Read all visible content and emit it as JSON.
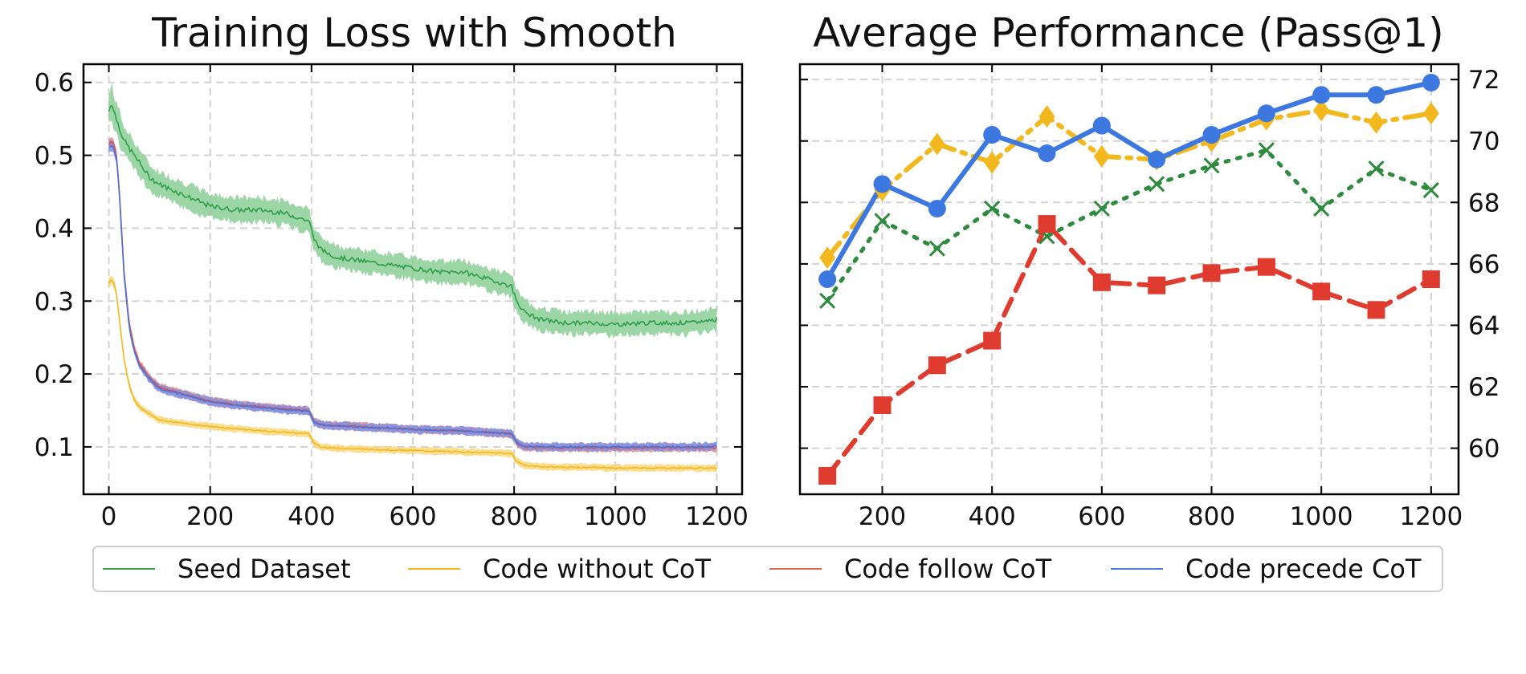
{
  "chart_data": [
    {
      "type": "line",
      "title": "Training Loss with Smooth",
      "xlabel": "",
      "ylabel": "",
      "xlim": [
        -50,
        1250
      ],
      "ylim": [
        0.035,
        0.625
      ],
      "xticks": [
        0,
        200,
        400,
        600,
        800,
        1000,
        1200
      ],
      "yticks": [
        0.1,
        0.2,
        0.3,
        0.4,
        0.5,
        0.6
      ],
      "xtick_labels": [
        "0",
        "200",
        "400",
        "600",
        "800",
        "1000",
        "1200"
      ],
      "ytick_labels": [
        "0.1",
        "0.2",
        "0.3",
        "0.4",
        "0.5",
        "0.6"
      ],
      "grid": true,
      "shaded_band": "smoothed curve with min/max band",
      "series": [
        {
          "name": "Seed Dataset",
          "color": "#2e9e4a",
          "band_color": "#8ccf97",
          "x": [
            0,
            5,
            10,
            20,
            30,
            40,
            60,
            80,
            100,
            150,
            200,
            250,
            300,
            350,
            395,
            405,
            420,
            450,
            500,
            550,
            600,
            650,
            700,
            750,
            795,
            805,
            820,
            850,
            900,
            950,
            1000,
            1050,
            1100,
            1150,
            1200
          ],
          "y": [
            0.56,
            0.575,
            0.56,
            0.54,
            0.52,
            0.51,
            0.49,
            0.47,
            0.46,
            0.445,
            0.43,
            0.425,
            0.425,
            0.42,
            0.41,
            0.385,
            0.37,
            0.36,
            0.355,
            0.35,
            0.345,
            0.34,
            0.34,
            0.33,
            0.32,
            0.3,
            0.285,
            0.275,
            0.27,
            0.27,
            0.268,
            0.27,
            0.27,
            0.27,
            0.275
          ],
          "spread": [
            0.025,
            0.03,
            0.03,
            0.028,
            0.025,
            0.025,
            0.025,
            0.022,
            0.022,
            0.022,
            0.022,
            0.022,
            0.022,
            0.022,
            0.022,
            0.022,
            0.02,
            0.02,
            0.02,
            0.02,
            0.02,
            0.02,
            0.02,
            0.02,
            0.02,
            0.02,
            0.02,
            0.02,
            0.02,
            0.02,
            0.02,
            0.02,
            0.02,
            0.02,
            0.02
          ]
        },
        {
          "name": "Code without CoT",
          "color": "#f2b81e",
          "band_color": "#f9d77a",
          "x": [
            0,
            5,
            10,
            15,
            20,
            30,
            40,
            50,
            60,
            80,
            100,
            150,
            200,
            250,
            300,
            350,
            395,
            405,
            420,
            450,
            500,
            550,
            600,
            650,
            700,
            750,
            795,
            805,
            820,
            850,
            900,
            950,
            1000,
            1050,
            1100,
            1150,
            1200
          ],
          "y": [
            0.325,
            0.33,
            0.325,
            0.31,
            0.28,
            0.22,
            0.185,
            0.165,
            0.155,
            0.145,
            0.137,
            0.132,
            0.128,
            0.125,
            0.122,
            0.12,
            0.118,
            0.105,
            0.1,
            0.098,
            0.097,
            0.096,
            0.095,
            0.094,
            0.093,
            0.092,
            0.091,
            0.08,
            0.075,
            0.073,
            0.072,
            0.072,
            0.071,
            0.071,
            0.071,
            0.071,
            0.071
          ],
          "spread": [
            0.008,
            0.008,
            0.008,
            0.008,
            0.008,
            0.007,
            0.006,
            0.006,
            0.006,
            0.006,
            0.006,
            0.006,
            0.006,
            0.006,
            0.006,
            0.006,
            0.006,
            0.006,
            0.006,
            0.006,
            0.006,
            0.006,
            0.006,
            0.006,
            0.006,
            0.006,
            0.006,
            0.006,
            0.006,
            0.006,
            0.006,
            0.006,
            0.006,
            0.006,
            0.006,
            0.006,
            0.006
          ]
        },
        {
          "name": "Code follow CoT",
          "color": "#d9534f",
          "band_color": "#e88f8c",
          "x": [
            0,
            5,
            10,
            15,
            20,
            25,
            30,
            40,
            50,
            60,
            80,
            100,
            150,
            200,
            250,
            300,
            350,
            395,
            405,
            420,
            450,
            500,
            550,
            600,
            650,
            700,
            750,
            795,
            805,
            820,
            850,
            900,
            950,
            1000,
            1050,
            1100,
            1150,
            1200
          ],
          "y": [
            0.515,
            0.52,
            0.515,
            0.5,
            0.46,
            0.4,
            0.34,
            0.27,
            0.235,
            0.215,
            0.195,
            0.182,
            0.172,
            0.163,
            0.158,
            0.155,
            0.152,
            0.15,
            0.135,
            0.13,
            0.129,
            0.128,
            0.126,
            0.124,
            0.123,
            0.122,
            0.12,
            0.118,
            0.105,
            0.1,
            0.099,
            0.099,
            0.099,
            0.099,
            0.099,
            0.099,
            0.099,
            0.099
          ],
          "spread": [
            0.01,
            0.01,
            0.01,
            0.01,
            0.01,
            0.01,
            0.009,
            0.008,
            0.007,
            0.007,
            0.007,
            0.007,
            0.007,
            0.007,
            0.007,
            0.007,
            0.007,
            0.007,
            0.007,
            0.007,
            0.007,
            0.007,
            0.007,
            0.007,
            0.007,
            0.007,
            0.007,
            0.007,
            0.007,
            0.007,
            0.007,
            0.007,
            0.007,
            0.007,
            0.007,
            0.007,
            0.007,
            0.007
          ]
        },
        {
          "name": "Code precede CoT",
          "color": "#4a72d8",
          "band_color": "#7e8fe0",
          "x": [
            0,
            5,
            10,
            15,
            20,
            25,
            30,
            40,
            50,
            60,
            80,
            100,
            150,
            200,
            250,
            300,
            350,
            395,
            405,
            420,
            450,
            500,
            550,
            600,
            650,
            700,
            750,
            795,
            805,
            820,
            850,
            900,
            950,
            1000,
            1050,
            1100,
            1150,
            1200
          ],
          "y": [
            0.51,
            0.515,
            0.51,
            0.495,
            0.455,
            0.395,
            0.335,
            0.265,
            0.232,
            0.213,
            0.193,
            0.18,
            0.171,
            0.162,
            0.157,
            0.154,
            0.151,
            0.149,
            0.134,
            0.13,
            0.129,
            0.127,
            0.126,
            0.124,
            0.123,
            0.122,
            0.12,
            0.118,
            0.106,
            0.101,
            0.1,
            0.1,
            0.1,
            0.1,
            0.1,
            0.1,
            0.1,
            0.101
          ],
          "spread": [
            0.01,
            0.01,
            0.01,
            0.01,
            0.01,
            0.01,
            0.009,
            0.008,
            0.007,
            0.007,
            0.007,
            0.007,
            0.007,
            0.007,
            0.007,
            0.007,
            0.007,
            0.007,
            0.007,
            0.007,
            0.007,
            0.007,
            0.007,
            0.007,
            0.007,
            0.007,
            0.007,
            0.007,
            0.007,
            0.007,
            0.007,
            0.007,
            0.007,
            0.007,
            0.007,
            0.007,
            0.007,
            0.007
          ]
        }
      ]
    },
    {
      "type": "line",
      "title": "Average Performance (Pass@1)",
      "xlabel": "",
      "ylabel": "",
      "xlim": [
        50,
        1250
      ],
      "ylim": [
        58.5,
        72.5
      ],
      "xticks": [
        200,
        400,
        600,
        800,
        1000,
        1200
      ],
      "yticks": [
        60,
        62,
        64,
        66,
        68,
        70,
        72
      ],
      "xtick_labels": [
        "200",
        "400",
        "600",
        "800",
        "1000",
        "1200"
      ],
      "ytick_labels": [
        "60",
        "62",
        "64",
        "66",
        "68",
        "70",
        "72"
      ],
      "yaxis_side": "right",
      "grid": true,
      "x": [
        100,
        200,
        300,
        400,
        500,
        600,
        700,
        800,
        900,
        1000,
        1100,
        1200
      ],
      "series": [
        {
          "name": "Code without CoT",
          "color": "#f2b81e",
          "linestyle": "dashdot",
          "marker": "diamond",
          "values": [
            66.2,
            68.4,
            69.9,
            69.3,
            70.8,
            69.5,
            69.4,
            70.0,
            70.7,
            71.0,
            70.6,
            70.9
          ]
        },
        {
          "name": "Seed Dataset",
          "color": "#2e8b3e",
          "linestyle": "dotted",
          "marker": "x",
          "values": [
            64.8,
            67.4,
            66.5,
            67.8,
            66.9,
            67.8,
            68.6,
            69.2,
            69.7,
            67.8,
            69.1,
            68.4
          ]
        },
        {
          "name": "Code follow CoT",
          "color": "#e03b2f",
          "linestyle": "dashed",
          "marker": "square",
          "values": [
            59.1,
            61.4,
            62.7,
            63.5,
            67.3,
            65.4,
            65.3,
            65.7,
            65.9,
            65.1,
            64.5,
            65.5
          ]
        },
        {
          "name": "Code precede CoT",
          "color": "#3c78e0",
          "linestyle": "solid",
          "marker": "circle",
          "values": [
            65.5,
            68.6,
            67.8,
            70.2,
            69.6,
            70.5,
            69.4,
            70.2,
            70.9,
            71.5,
            71.5,
            71.9
          ]
        }
      ]
    }
  ],
  "legend": {
    "placement": "bottom-center",
    "items": [
      {
        "label": "Seed Dataset",
        "color": "#3aa552"
      },
      {
        "label": "Code without CoT",
        "color": "#f2b81e"
      },
      {
        "label": "Code follow CoT",
        "color": "#e06a5f"
      },
      {
        "label": "Code precede CoT",
        "color": "#4a7ee0"
      }
    ]
  }
}
